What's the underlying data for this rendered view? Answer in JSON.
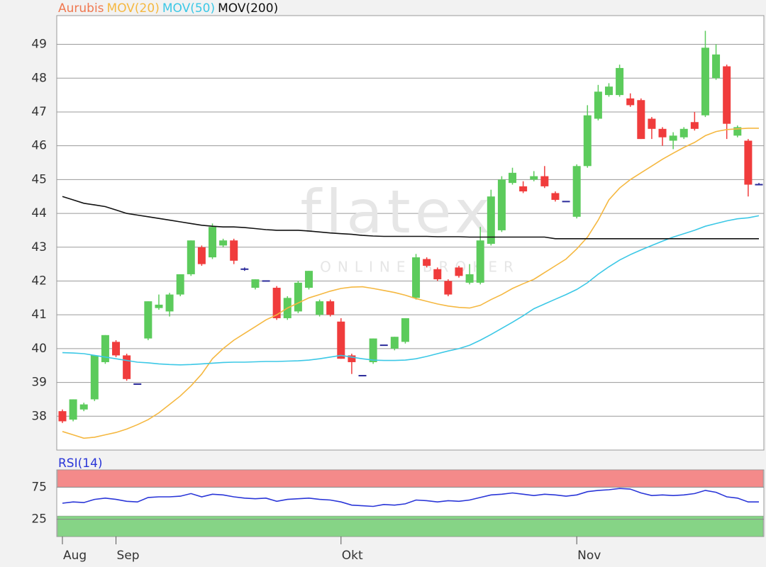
{
  "chart_data": [
    {
      "type": "candlestick",
      "watermark": "flatex",
      "watermark_sub": "ONLINE BROKER",
      "ylim": [
        37,
        49.85
      ],
      "yticks": [
        38,
        39,
        40,
        41,
        42,
        43,
        44,
        45,
        46,
        47,
        48,
        49
      ],
      "grid": true,
      "series": [
        {
          "name": "Aurubis",
          "color": "#f07850",
          "up_color": "#5ccb5c",
          "down_color": "#f03c3c",
          "flat_color": "#2a2a9a",
          "open": [
            38.15,
            37.9,
            38.2,
            38.5,
            39.6,
            40.2,
            39.8,
            38.95,
            40.3,
            41.2,
            41.1,
            41.6,
            42.2,
            43.0,
            42.7,
            43.05,
            43.2,
            42.35,
            41.8,
            42.0,
            41.8,
            40.9,
            41.1,
            41.8,
            41.0,
            41.4,
            40.8,
            39.8,
            39.2,
            39.6,
            40.1,
            40.0,
            40.2,
            41.5,
            42.65,
            42.35,
            42.0,
            42.4,
            41.95,
            41.95,
            43.1,
            43.5,
            44.9,
            44.8,
            45.0,
            45.1,
            44.6,
            44.35,
            43.9,
            45.4,
            46.8,
            47.5,
            47.5,
            47.4,
            47.35,
            46.8,
            46.5,
            46.15,
            46.25,
            46.7,
            46.9,
            48.0,
            48.35,
            46.3,
            46.15,
            44.85
          ],
          "high": [
            38.2,
            38.5,
            38.4,
            39.8,
            40.4,
            40.25,
            39.85,
            38.95,
            41.4,
            41.6,
            41.65,
            42.2,
            43.2,
            43.05,
            43.7,
            43.25,
            43.25,
            42.4,
            42.05,
            42.0,
            41.85,
            41.55,
            42.0,
            42.3,
            41.45,
            41.45,
            40.9,
            39.85,
            39.2,
            40.3,
            40.1,
            40.35,
            40.9,
            42.8,
            42.7,
            42.4,
            42.05,
            42.45,
            42.5,
            43.6,
            44.7,
            45.1,
            45.35,
            44.95,
            45.25,
            45.4,
            44.65,
            44.35,
            45.45,
            47.2,
            47.8,
            47.85,
            48.4,
            47.55,
            47.4,
            46.85,
            46.55,
            46.4,
            46.55,
            47.0,
            49.4,
            49.0,
            48.4,
            46.6,
            46.2,
            44.9
          ],
          "low": [
            37.8,
            37.85,
            38.15,
            38.45,
            39.55,
            39.75,
            39.05,
            38.95,
            40.25,
            41.15,
            40.95,
            41.55,
            42.15,
            42.45,
            42.65,
            43.0,
            42.5,
            42.3,
            41.75,
            42.0,
            40.85,
            40.85,
            41.05,
            41.75,
            40.95,
            40.95,
            39.7,
            39.25,
            39.2,
            39.55,
            40.1,
            39.95,
            40.15,
            41.45,
            42.4,
            42.0,
            41.55,
            42.1,
            41.9,
            41.9,
            43.05,
            43.45,
            44.85,
            44.6,
            44.95,
            44.75,
            44.35,
            44.35,
            43.85,
            45.35,
            46.75,
            47.45,
            47.45,
            47.15,
            46.2,
            46.2,
            46.0,
            45.9,
            46.2,
            46.45,
            46.85,
            47.95,
            46.2,
            46.25,
            44.5,
            44.85
          ],
          "close": [
            37.85,
            38.5,
            38.35,
            39.8,
            40.4,
            39.8,
            39.1,
            38.95,
            41.4,
            41.3,
            41.6,
            42.2,
            43.2,
            42.5,
            43.6,
            43.2,
            42.6,
            42.35,
            42.05,
            42.0,
            40.9,
            41.5,
            41.95,
            42.3,
            41.4,
            41.0,
            39.7,
            39.6,
            39.2,
            40.3,
            40.1,
            40.35,
            40.9,
            42.7,
            42.45,
            42.05,
            41.6,
            42.15,
            42.2,
            43.2,
            44.5,
            45.0,
            45.2,
            44.65,
            45.1,
            44.8,
            44.4,
            44.35,
            45.4,
            46.9,
            47.6,
            47.75,
            48.3,
            47.2,
            46.2,
            46.5,
            46.25,
            46.3,
            46.5,
            46.5,
            48.9,
            48.7,
            46.65,
            46.55,
            44.85,
            44.85
          ]
        },
        {
          "name": "MOV(20)",
          "color": "#f5b841",
          "values": [
            37.55,
            37.45,
            37.35,
            37.38,
            37.45,
            37.52,
            37.62,
            37.75,
            37.9,
            38.1,
            38.35,
            38.6,
            38.9,
            39.25,
            39.7,
            40.0,
            40.25,
            40.45,
            40.65,
            40.85,
            41.0,
            41.2,
            41.35,
            41.5,
            41.6,
            41.7,
            41.78,
            41.82,
            41.83,
            41.78,
            41.72,
            41.66,
            41.58,
            41.48,
            41.4,
            41.32,
            41.26,
            41.22,
            41.2,
            41.28,
            41.45,
            41.6,
            41.78,
            41.92,
            42.05,
            42.25,
            42.45,
            42.65,
            42.95,
            43.3,
            43.8,
            44.4,
            44.75,
            45.0,
            45.2,
            45.4,
            45.6,
            45.78,
            45.95,
            46.1,
            46.3,
            46.42,
            46.48,
            46.5,
            46.52,
            46.52
          ]
        },
        {
          "name": "MOV(50)",
          "color": "#3cc8e6",
          "values": [
            39.88,
            39.87,
            39.85,
            39.8,
            39.75,
            39.7,
            39.65,
            39.6,
            39.58,
            39.55,
            39.53,
            39.52,
            39.53,
            39.55,
            39.57,
            39.59,
            39.6,
            39.6,
            39.61,
            39.62,
            39.62,
            39.63,
            39.64,
            39.66,
            39.7,
            39.75,
            39.8,
            39.75,
            39.7,
            39.66,
            39.65,
            39.65,
            39.66,
            39.7,
            39.77,
            39.85,
            39.93,
            40.0,
            40.1,
            40.25,
            40.42,
            40.6,
            40.78,
            40.97,
            41.18,
            41.32,
            41.46,
            41.6,
            41.75,
            41.95,
            42.2,
            42.42,
            42.62,
            42.78,
            42.92,
            43.05,
            43.18,
            43.3,
            43.4,
            43.5,
            43.62,
            43.7,
            43.78,
            43.84,
            43.87,
            43.93
          ]
        },
        {
          "name": "MOV(200)",
          "color": "#111111",
          "values": [
            44.5,
            44.4,
            44.3,
            44.25,
            44.2,
            44.1,
            44.0,
            43.95,
            43.9,
            43.85,
            43.8,
            43.75,
            43.7,
            43.65,
            43.62,
            43.6,
            43.6,
            43.58,
            43.55,
            43.52,
            43.5,
            43.5,
            43.5,
            43.48,
            43.45,
            43.42,
            43.4,
            43.38,
            43.35,
            43.33,
            43.32,
            43.32,
            43.32,
            43.32,
            43.32,
            43.31,
            43.31,
            43.31,
            43.3,
            43.3,
            43.3,
            43.3,
            43.3,
            43.3,
            43.3,
            43.3,
            43.25,
            43.25,
            43.25,
            43.25,
            43.25,
            43.25,
            43.25,
            43.25,
            43.25,
            43.25,
            43.25,
            43.25,
            43.25,
            43.25,
            43.25,
            43.25,
            43.25,
            43.25,
            43.25,
            43.25
          ]
        }
      ]
    },
    {
      "type": "line",
      "ylim": [
        -2,
        102
      ],
      "yticks": [
        25,
        75
      ],
      "bands": [
        {
          "from": 75,
          "to": 102,
          "color": "#f48a8a"
        },
        {
          "from": -2,
          "to": 30,
          "color": "#86d486"
        }
      ],
      "categories": [
        "Aug",
        null,
        null,
        null,
        null,
        "Sep",
        null,
        null,
        null,
        null,
        null,
        null,
        null,
        null,
        null,
        null,
        null,
        null,
        null,
        null,
        null,
        null,
        null,
        null,
        null,
        null,
        "Okt",
        null,
        null,
        null,
        null,
        null,
        null,
        null,
        null,
        null,
        null,
        null,
        null,
        null,
        null,
        null,
        null,
        null,
        null,
        null,
        null,
        null,
        "Nov",
        null,
        null,
        null,
        null,
        null,
        null,
        null,
        null,
        null,
        null,
        null,
        null,
        null,
        null,
        null,
        null,
        null
      ],
      "series": [
        {
          "name": "RSI(14)",
          "color": "#2a36d8",
          "values": [
            50,
            52,
            51,
            56,
            58,
            56,
            53,
            52,
            59,
            60,
            60,
            61,
            65,
            60,
            64,
            63,
            60,
            58,
            57,
            58,
            53,
            56,
            57,
            58,
            56,
            55,
            52,
            47,
            46,
            45,
            48,
            47,
            49,
            55,
            54,
            52,
            54,
            53,
            55,
            59,
            63,
            64,
            66,
            64,
            62,
            64,
            63,
            61,
            63,
            68,
            70,
            71,
            73,
            72,
            66,
            62,
            63,
            62,
            63,
            65,
            70,
            67,
            60,
            58,
            52,
            52
          ]
        }
      ]
    }
  ]
}
